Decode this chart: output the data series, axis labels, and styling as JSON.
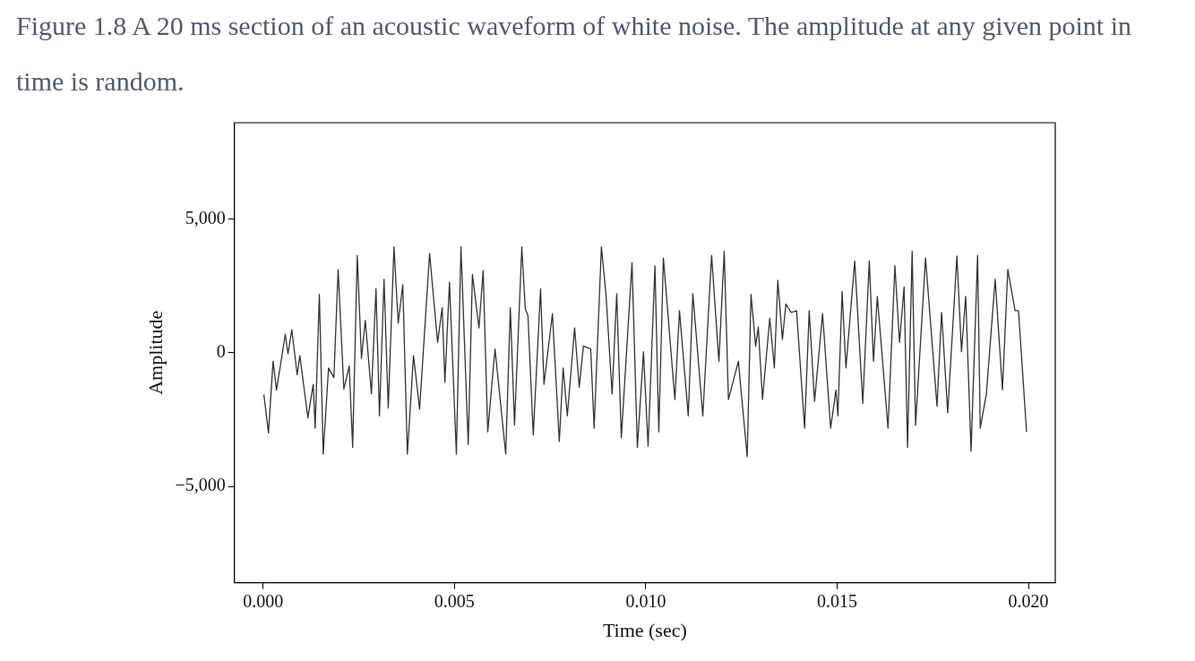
{
  "chart_data": {
    "type": "line",
    "title": "Figure 1.8 A 20 ms section of an acoustic waveform of white noise. The amplitude at any given point in time is random.",
    "xlabel": "Time (sec)",
    "ylabel": "Amplitude",
    "x": [
      2e-05,
      0.00014,
      0.00026,
      0.00035,
      0.00058,
      0.00065,
      0.00075,
      0.00089,
      0.00096,
      0.00117,
      0.00131,
      0.00136,
      0.00147,
      0.00157,
      0.00171,
      0.00185,
      0.00196,
      0.00211,
      0.00225,
      0.00234,
      0.00246,
      0.00257,
      0.00267,
      0.00283,
      0.00295,
      0.00304,
      0.00316,
      0.00327,
      0.00342,
      0.00353,
      0.00365,
      0.00377,
      0.00393,
      0.00409,
      0.00435,
      0.00456,
      0.00468,
      0.00475,
      0.00487,
      0.00505,
      0.00517,
      0.00536,
      0.00547,
      0.00564,
      0.00575,
      0.00587,
      0.00606,
      0.00634,
      0.00646,
      0.00657,
      0.00676,
      0.00685,
      0.00692,
      0.00706,
      0.00725,
      0.00734,
      0.00756,
      0.00774,
      0.00784,
      0.00795,
      0.00814,
      0.00826,
      0.00837,
      0.00856,
      0.00865,
      0.00884,
      0.00896,
      0.00912,
      0.00924,
      0.00936,
      0.00964,
      0.00978,
      0.00994,
      0.01006,
      0.01024,
      0.01034,
      0.01046,
      0.01076,
      0.01088,
      0.01111,
      0.01123,
      0.01149,
      0.01172,
      0.01191,
      0.01205,
      0.01216,
      0.01242,
      0.01265,
      0.01275,
      0.01287,
      0.01294,
      0.01305,
      0.01324,
      0.01336,
      0.01345,
      0.01357,
      0.01366,
      0.0138,
      0.01394,
      0.01415,
      0.01427,
      0.01441,
      0.01462,
      0.01483,
      0.01497,
      0.01502,
      0.01513,
      0.01523,
      0.01546,
      0.01567,
      0.01584,
      0.01595,
      0.01605,
      0.01633,
      0.01651,
      0.01663,
      0.01675,
      0.01684,
      0.01696,
      0.01705,
      0.01731,
      0.01761,
      0.01773,
      0.01789,
      0.01813,
      0.01825,
      0.01836,
      0.0185,
      0.01867,
      0.01874,
      0.0189,
      0.01913,
      0.01932,
      0.01946,
      0.01965,
      0.01974,
      0.01995
    ],
    "series": [
      {
        "color": "#333333",
        "values": [
          -1570,
          -3000,
          -320,
          -1390,
          680,
          -40,
          860,
          -820,
          -110,
          -2430,
          -1180,
          -2820,
          2180,
          -3790,
          -570,
          -930,
          3110,
          -1360,
          -500,
          -3540,
          3640,
          -210,
          1210,
          -1540,
          2390,
          -2360,
          2750,
          -2070,
          3960,
          1110,
          2540,
          -3790,
          -110,
          -2110,
          3710,
          390,
          1680,
          -1110,
          2640,
          -3790,
          3960,
          -3430,
          2930,
          930,
          3070,
          -2960,
          140,
          -3790,
          1680,
          -2710,
          3960,
          1640,
          1390,
          -3070,
          2390,
          -1180,
          1460,
          -3320,
          -570,
          -2360,
          930,
          -1290,
          250,
          140,
          -2820,
          3960,
          2180,
          -1540,
          2210,
          -3180,
          3360,
          -3540,
          40,
          -3500,
          3250,
          -2960,
          3540,
          -1750,
          1570,
          -2360,
          2210,
          -2360,
          3640,
          -320,
          3790,
          -1750,
          -320,
          -3890,
          2180,
          250,
          960,
          -1750,
          1290,
          -570,
          2710,
          500,
          1820,
          1500,
          1570,
          -2820,
          1570,
          -1820,
          1460,
          -2820,
          -1390,
          -2360,
          2290,
          -570,
          3430,
          -1890,
          3430,
          -320,
          2110,
          -2820,
          3250,
          390,
          2460,
          -3540,
          3790,
          -2710,
          3540,
          -2000,
          1500,
          -2250,
          3610,
          40,
          2110,
          -3680,
          3640,
          -2820,
          -1540,
          2750,
          -1390,
          3110,
          1570,
          1570,
          -2960
        ]
      }
    ],
    "xlim": [
      -0.00075,
      0.0207
    ],
    "ylim": [
      -8600,
      8600
    ],
    "xticks": [
      {
        "value": 0,
        "label": "0.000"
      },
      {
        "value": 0.005,
        "label": "0.005"
      },
      {
        "value": 0.01,
        "label": "0.010"
      },
      {
        "value": 0.015,
        "label": "0.015"
      },
      {
        "value": 0.02,
        "label": "0.020"
      }
    ],
    "yticks": [
      {
        "value": -5000,
        "label": "−5,000"
      },
      0,
      {
        "value": 5000,
        "label": "5,000"
      }
    ],
    "grid": false,
    "legend": false,
    "marker": "none",
    "line_style": "solid"
  }
}
